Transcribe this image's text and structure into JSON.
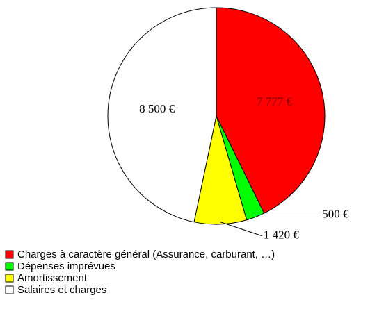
{
  "chart_data": {
    "type": "pie",
    "categories": [
      "Charges à caractère général (Assurance, carburant, …)",
      "Dépenses imprévues",
      "Amortissement",
      "Salaires et charges"
    ],
    "values": [
      7777,
      500,
      1420,
      8500
    ],
    "value_labels": [
      "7 777 €",
      "500 €",
      "1 420 €",
      "8 500 €"
    ],
    "colors": [
      "#ff0000",
      "#00ff00",
      "#ffff00",
      "#ffffff"
    ]
  }
}
